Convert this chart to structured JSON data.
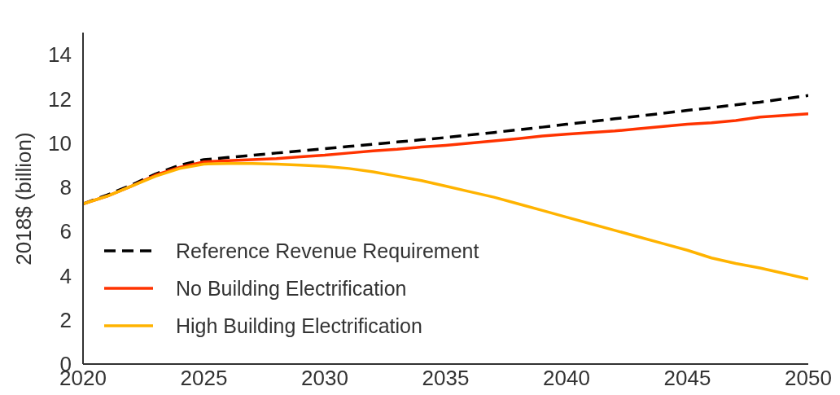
{
  "chart_data": {
    "type": "line",
    "ylabel": "2018$ (billion)",
    "x": [
      2020,
      2021,
      2022,
      2023,
      2024,
      2025,
      2026,
      2027,
      2028,
      2029,
      2030,
      2031,
      2032,
      2033,
      2034,
      2035,
      2036,
      2037,
      2038,
      2039,
      2040,
      2041,
      2042,
      2043,
      2044,
      2045,
      2046,
      2047,
      2048,
      2049,
      2050
    ],
    "series": [
      {
        "name": "Reference Revenue Requirement",
        "color": "#000000",
        "line_style": "dashed",
        "values": [
          7.25,
          7.65,
          8.1,
          8.6,
          9.0,
          9.25,
          9.35,
          9.45,
          9.55,
          9.65,
          9.75,
          9.85,
          9.95,
          10.05,
          10.15,
          10.25,
          10.37,
          10.48,
          10.6,
          10.72,
          10.85,
          10.97,
          11.1,
          11.22,
          11.35,
          11.48,
          11.6,
          11.73,
          11.85,
          12.0,
          12.15
        ]
      },
      {
        "name": "No Building Electrification",
        "color": "#ff3300",
        "line_style": "solid",
        "values": [
          7.25,
          7.6,
          8.05,
          8.55,
          8.9,
          9.15,
          9.2,
          9.25,
          9.3,
          9.38,
          9.45,
          9.55,
          9.65,
          9.72,
          9.82,
          9.9,
          10.0,
          10.1,
          10.2,
          10.32,
          10.4,
          10.48,
          10.55,
          10.65,
          10.75,
          10.85,
          10.92,
          11.02,
          11.18,
          11.25,
          11.32
        ]
      },
      {
        "name": "High Building Electrification",
        "color": "#ffb300",
        "line_style": "solid",
        "values": [
          7.25,
          7.6,
          8.05,
          8.5,
          8.85,
          9.05,
          9.08,
          9.08,
          9.05,
          9.0,
          8.95,
          8.85,
          8.7,
          8.5,
          8.3,
          8.05,
          7.8,
          7.55,
          7.25,
          6.95,
          6.65,
          6.35,
          6.05,
          5.75,
          5.45,
          5.15,
          4.8,
          4.55,
          4.35,
          4.1,
          3.85
        ]
      }
    ],
    "xlim": [
      2020,
      2050
    ],
    "xticks": [
      2020,
      2025,
      2030,
      2035,
      2040,
      2045,
      2050
    ],
    "ylim": [
      0,
      15
    ],
    "yticks": [
      0,
      2,
      4,
      6,
      8,
      10,
      12,
      14
    ],
    "grid": false,
    "legend": "bottom left",
    "marker": "none"
  }
}
